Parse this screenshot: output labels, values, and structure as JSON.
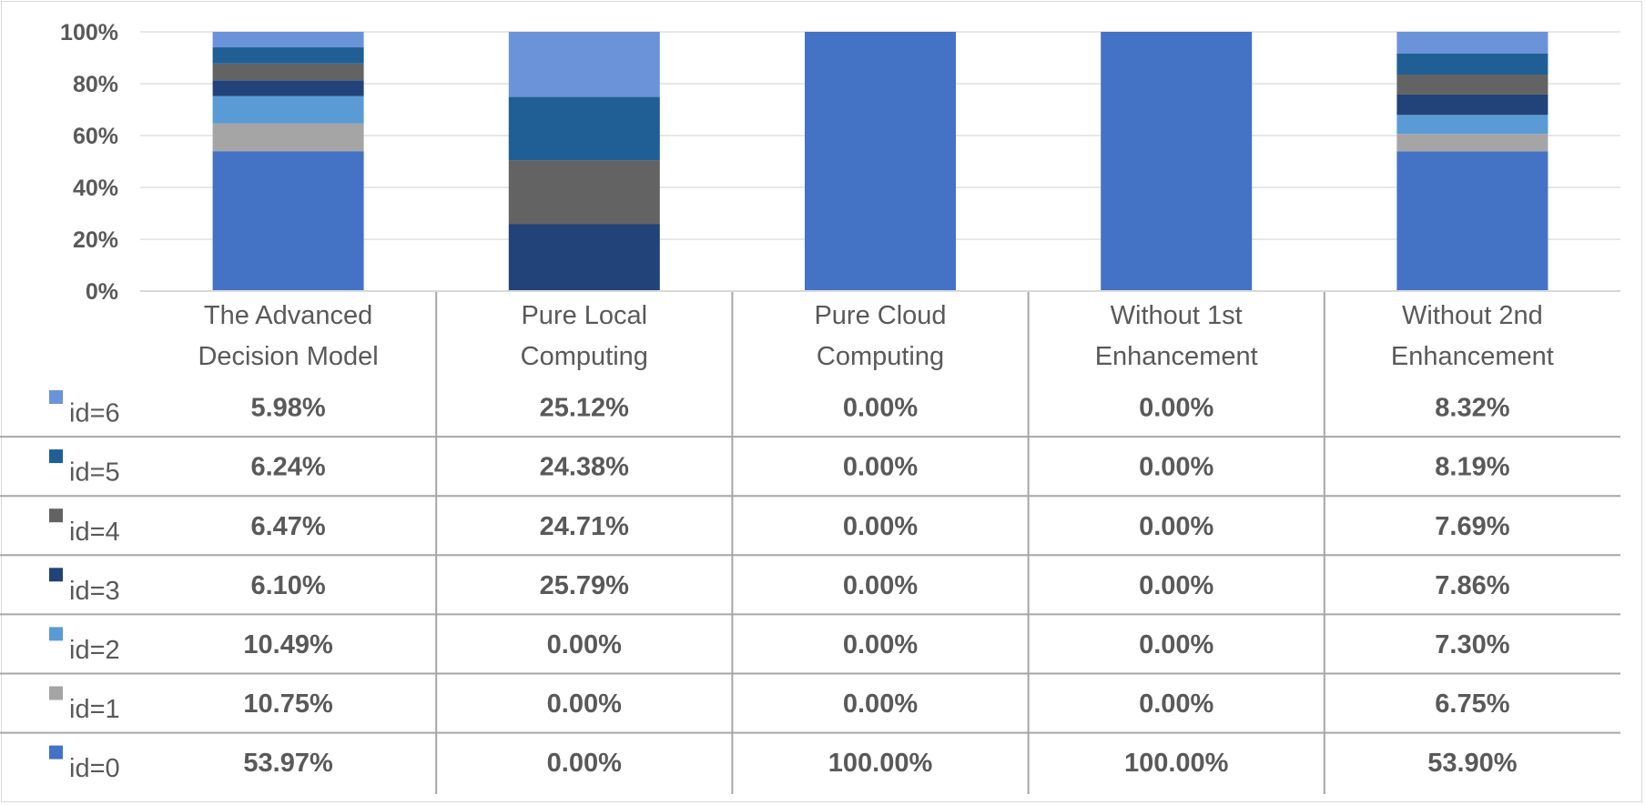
{
  "chart_data": {
    "type": "bar",
    "stacked": true,
    "percent": true,
    "categories": [
      "The Advanced Decision Model",
      "Pure Local Computing",
      "Pure Cloud Computing",
      "Without 1st Enhancement",
      "Without 2nd Enhancement"
    ],
    "category_lines": [
      [
        "The Advanced",
        "Decision Model"
      ],
      [
        "Pure Local",
        "Computing"
      ],
      [
        "Pure Cloud",
        "Computing"
      ],
      [
        "Without 1st",
        "Enhancement"
      ],
      [
        "Without 2nd",
        "Enhancement"
      ]
    ],
    "yticks": [
      "0%",
      "20%",
      "40%",
      "60%",
      "80%",
      "100%"
    ],
    "ylim": [
      0,
      100
    ],
    "grid": true,
    "legend": "data-table",
    "series": [
      {
        "name": "id=6",
        "color": "#6a93d9",
        "values": [
          5.98,
          25.12,
          0.0,
          0.0,
          8.32
        ],
        "labels": [
          "5.98%",
          "25.12%",
          "0.00%",
          "0.00%",
          "8.32%"
        ]
      },
      {
        "name": "id=5",
        "color": "#1f5f95",
        "values": [
          6.24,
          24.38,
          0.0,
          0.0,
          8.19
        ],
        "labels": [
          "6.24%",
          "24.38%",
          "0.00%",
          "0.00%",
          "8.19%"
        ]
      },
      {
        "name": "id=4",
        "color": "#636363",
        "values": [
          6.47,
          24.71,
          0.0,
          0.0,
          7.69
        ],
        "labels": [
          "6.47%",
          "24.71%",
          "0.00%",
          "0.00%",
          "7.69%"
        ]
      },
      {
        "name": "id=3",
        "color": "#22427a",
        "values": [
          6.1,
          25.79,
          0.0,
          0.0,
          7.86
        ],
        "labels": [
          "6.10%",
          "25.79%",
          "0.00%",
          "0.00%",
          "7.86%"
        ]
      },
      {
        "name": "id=2",
        "color": "#5b9bd5",
        "values": [
          10.49,
          0.0,
          0.0,
          0.0,
          7.3
        ],
        "labels": [
          "10.49%",
          "0.00%",
          "0.00%",
          "0.00%",
          "7.30%"
        ]
      },
      {
        "name": "id=1",
        "color": "#a5a5a5",
        "values": [
          10.75,
          0.0,
          0.0,
          0.0,
          6.75
        ],
        "labels": [
          "10.75%",
          "0.00%",
          "0.00%",
          "0.00%",
          "6.75%"
        ]
      },
      {
        "name": "id=0",
        "color": "#4472c4",
        "values": [
          53.97,
          0.0,
          100.0,
          100.0,
          53.9
        ],
        "labels": [
          "53.97%",
          "0.00%",
          "100.00%",
          "100.00%",
          "53.90%"
        ]
      }
    ]
  }
}
